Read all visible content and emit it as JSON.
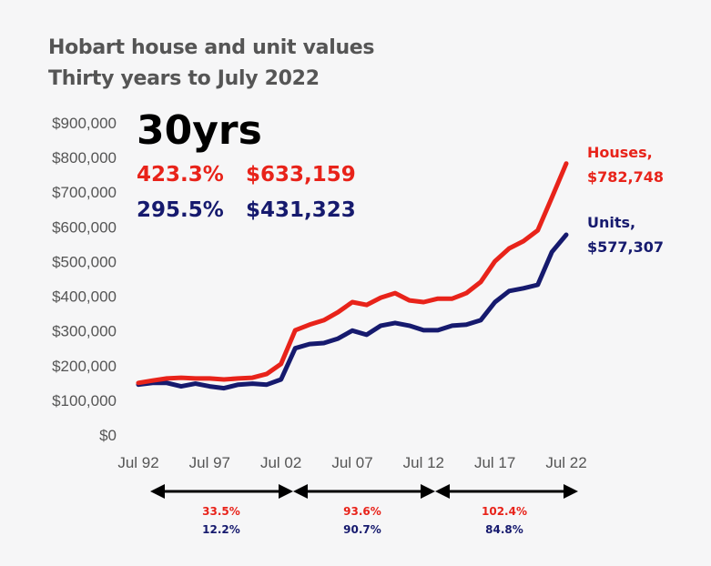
{
  "chart_data": {
    "type": "line",
    "title": "Hobart house and unit values",
    "subtitle": "Thirty years to July 2022",
    "xlabel": "",
    "ylabel": "",
    "ylim": [
      0,
      900000
    ],
    "yticks": [
      "$0",
      "$100,000",
      "$200,000",
      "$300,000",
      "$400,000",
      "$500,000",
      "$600,000",
      "$700,000",
      "$800,000",
      "$900,000"
    ],
    "xticks": [
      "Jul 92",
      "Jul 97",
      "Jul 02",
      "Jul 07",
      "Jul 12",
      "Jul 17",
      "Jul 22"
    ],
    "x": [
      1992,
      1993,
      1994,
      1995,
      1996,
      1997,
      1998,
      1999,
      2000,
      2001,
      2002,
      2003,
      2004,
      2005,
      2006,
      2007,
      2008,
      2009,
      2010,
      2011,
      2012,
      2013,
      2014,
      2015,
      2016,
      2017,
      2018,
      2019,
      2020,
      2021,
      2022
    ],
    "series": [
      {
        "name": "Houses",
        "color": "#e8231a",
        "label": "Houses,",
        "final_label": "$782,748",
        "values": [
          150000,
          157000,
          163000,
          165000,
          163000,
          163000,
          160000,
          163000,
          165000,
          176000,
          205000,
          302000,
          318000,
          331000,
          354000,
          383000,
          375000,
          396000,
          409000,
          388000,
          383000,
          393000,
          393000,
          409000,
          441000,
          501000,
          538000,
          559000,
          590000,
          685000,
          782748
        ]
      },
      {
        "name": "Units",
        "color": "#161a6e",
        "label": "Units,",
        "final_label": "$577,307",
        "values": [
          145000,
          150000,
          150000,
          140000,
          148000,
          140000,
          135000,
          145000,
          148000,
          145000,
          160000,
          250000,
          262000,
          265000,
          278000,
          301000,
          289000,
          315000,
          323000,
          315000,
          302000,
          302000,
          315000,
          318000,
          331000,
          383000,
          415000,
          423000,
          433000,
          528000,
          577307
        ]
      }
    ],
    "annotations": {
      "headline": "30yrs",
      "houses_growth": "423.3%",
      "houses_change": "$633,159",
      "units_growth": "295.5%",
      "units_change": "$431,323"
    },
    "periods": [
      {
        "houses": "33.5%",
        "units": "12.2%"
      },
      {
        "houses": "93.6%",
        "units": "90.7%"
      },
      {
        "houses": "102.4%",
        "units": "84.8%"
      }
    ],
    "grid": false,
    "legend": "right"
  }
}
